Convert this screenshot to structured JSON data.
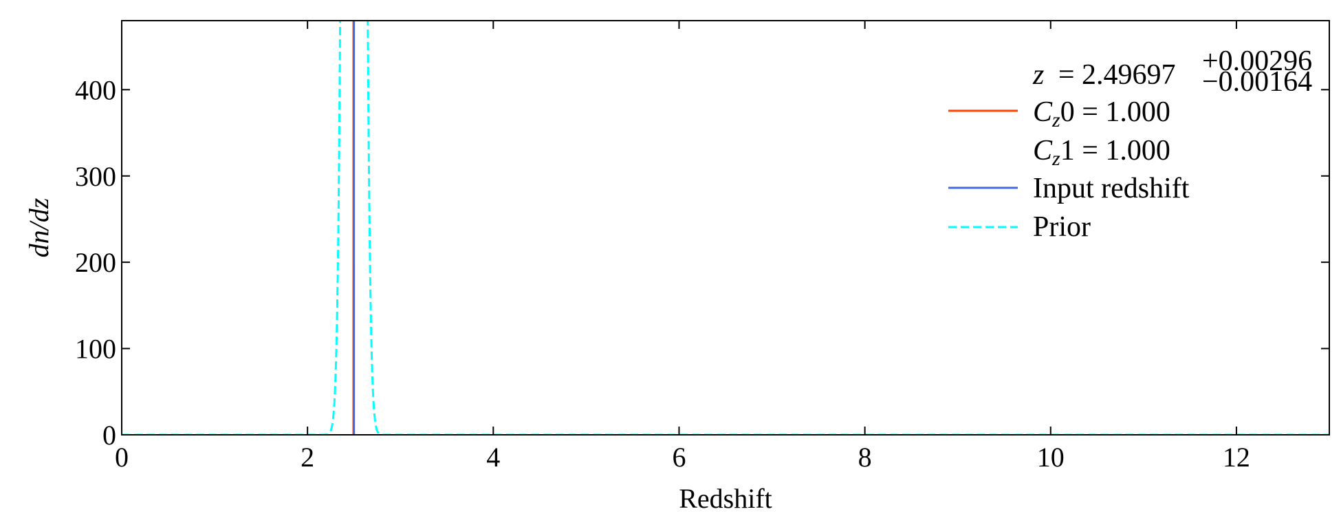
{
  "chart_data": {
    "type": "line",
    "xlabel": "Redshift",
    "ylabel": "dn/dz",
    "xlim": [
      0,
      13
    ],
    "ylim": [
      0,
      480
    ],
    "x_ticks": [
      "0",
      "2",
      "4",
      "6",
      "8",
      "10",
      "12"
    ],
    "y_ticks": [
      "0",
      "100",
      "200",
      "300",
      "400"
    ],
    "legend": {
      "position": "top-right",
      "annotation": {
        "symbol": "z",
        "value": "2.49697",
        "upper": "+0.00296",
        "lower": "−0.00164"
      },
      "entries": [
        {
          "symbol": "C",
          "sub": "z",
          "index": "0",
          "value": "1.000",
          "color": "#FF4500",
          "style": "solid"
        },
        {
          "symbol": "C",
          "sub": "z",
          "index": "1",
          "value": "1.000",
          "color": null,
          "style": "none"
        },
        {
          "label": "Input redshift",
          "color": "#4169E1",
          "style": "solid"
        },
        {
          "label": "Prior",
          "color": "#00FFFF",
          "style": "dashed"
        }
      ]
    },
    "series": [
      {
        "key": "posterior",
        "color": "#FF4500",
        "style": "solid",
        "points": [
          [
            2.495,
            0
          ],
          [
            2.4955,
            480
          ],
          [
            2.4985,
            480
          ],
          [
            2.499,
            0
          ]
        ]
      },
      {
        "key": "input",
        "color": "#4169E1",
        "style": "solid",
        "vline_x": 2.5
      },
      {
        "key": "prior",
        "color": "#00FFFF",
        "style": "dashed",
        "gaussian": {
          "mean": 2.5,
          "sigma": 0.0661,
          "peak": 6035,
          "x_from": 0,
          "x_to": 13,
          "steps": 2600
        }
      }
    ]
  }
}
